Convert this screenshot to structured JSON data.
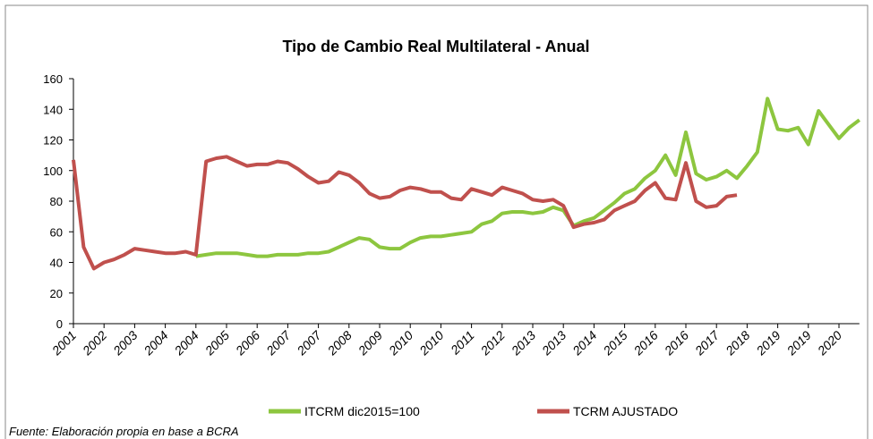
{
  "chart_data": {
    "type": "line",
    "title": "Tipo de Cambio Real Multilateral - Anual",
    "source": "Fuente: Elaboración propia en base a BCRA",
    "categories": [
      "2001",
      null,
      null,
      "2002",
      null,
      null,
      "2003",
      null,
      null,
      "2004",
      null,
      null,
      "2004",
      null,
      null,
      "2005",
      null,
      null,
      "2006",
      null,
      null,
      "2007",
      null,
      null,
      "2007",
      null,
      null,
      "2008",
      null,
      null,
      "2009",
      null,
      null,
      "2010",
      null,
      null,
      "2010",
      null,
      null,
      "2011",
      null,
      null,
      "2012",
      null,
      null,
      "2013",
      null,
      null,
      "2013",
      null,
      null,
      "2014",
      null,
      null,
      "2015",
      null,
      null,
      "2016",
      null,
      null,
      "2016",
      null,
      null,
      "2017",
      null,
      null,
      "2018",
      null,
      null,
      "2019",
      null,
      null,
      "2019",
      null,
      null,
      "2020",
      null,
      null
    ],
    "series": [
      {
        "name": "ITCRM dic2015=100",
        "color": "#8dc63f",
        "values": [
          null,
          null,
          null,
          null,
          null,
          null,
          null,
          null,
          null,
          null,
          null,
          null,
          44,
          45,
          46,
          46,
          46,
          45,
          44,
          44,
          45,
          45,
          45,
          46,
          46,
          47,
          50,
          53,
          56,
          55,
          50,
          49,
          49,
          53,
          56,
          57,
          57,
          58,
          59,
          60,
          65,
          67,
          72,
          73,
          73,
          72,
          73,
          76,
          74,
          64,
          67,
          69,
          74,
          79,
          85,
          88,
          95,
          100,
          110,
          97,
          125,
          98,
          94,
          96,
          100,
          95,
          103,
          112,
          147,
          127,
          126,
          128,
          117,
          139,
          130,
          121,
          128,
          133
        ]
      },
      {
        "name": "TCRM AJUSTADO",
        "color": "#c0504d",
        "values": [
          107,
          50,
          36,
          40,
          42,
          45,
          49,
          48,
          47,
          46,
          46,
          47,
          45,
          106,
          108,
          109,
          106,
          103,
          104,
          104,
          106,
          105,
          101,
          96,
          92,
          93,
          99,
          97,
          92,
          85,
          82,
          83,
          87,
          89,
          88,
          86,
          86,
          82,
          81,
          88,
          86,
          84,
          89,
          87,
          85,
          81,
          80,
          81,
          77,
          63,
          65,
          66,
          68,
          74,
          77,
          80,
          87,
          92,
          82,
          81,
          105,
          80,
          76,
          77,
          83,
          84,
          null,
          null,
          null,
          null,
          null,
          null,
          null,
          null,
          null,
          null,
          null,
          null
        ]
      }
    ],
    "ylim": [
      0,
      160
    ],
    "yticks": [
      0,
      20,
      40,
      60,
      80,
      100,
      120,
      140,
      160
    ]
  }
}
